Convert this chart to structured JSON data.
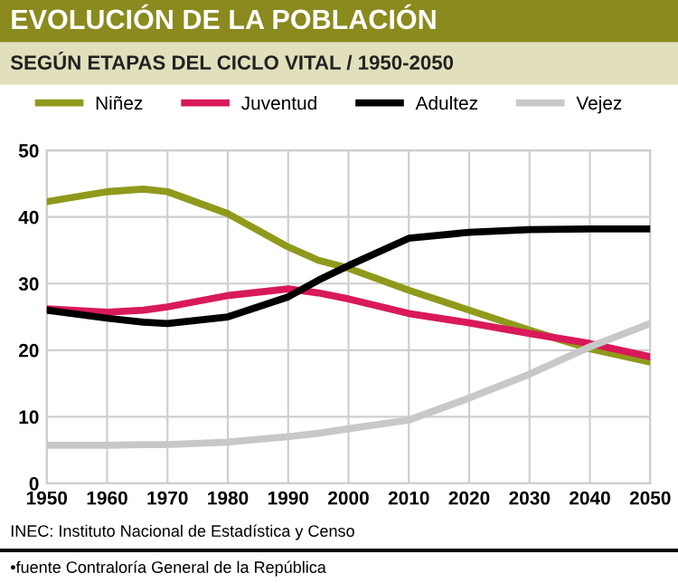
{
  "chart_data": {
    "type": "line",
    "title": "EVOLUCIÓN DE LA POBLACIÓN",
    "subtitle": "SEGÚN ETAPAS DEL CICLO VITAL / 1950-2050",
    "x": [
      1950,
      1960,
      1966,
      1970,
      1980,
      1990,
      1995,
      2000,
      2010,
      2020,
      2030,
      2040,
      2050
    ],
    "series": [
      {
        "name": "Niñez",
        "color": "#8f9a1c",
        "values": [
          42.3,
          43.8,
          44.2,
          43.8,
          40.5,
          35.5,
          33.5,
          32.3,
          29,
          26,
          23,
          20.2,
          18.2
        ]
      },
      {
        "name": "Juventud",
        "color": "#d9195a",
        "values": [
          26.2,
          25.7,
          26,
          26.5,
          28.2,
          29.2,
          28.6,
          27.7,
          25.5,
          24.1,
          22.5,
          21,
          19
        ]
      },
      {
        "name": "Adultez",
        "color": "#000000",
        "values": [
          26,
          24.8,
          24.2,
          24,
          25,
          28,
          30.5,
          32.7,
          36.8,
          37.7,
          38.1,
          38.2,
          38.2
        ]
      },
      {
        "name": "Vejez",
        "color": "#c8c8c8",
        "values": [
          5.7,
          5.7,
          5.8,
          5.8,
          6.2,
          7,
          7.5,
          8.2,
          9.5,
          12.8,
          16.4,
          20.5,
          24
        ]
      }
    ],
    "xlim": [
      1950,
      2050
    ],
    "xticks": [
      1950,
      1960,
      1970,
      1980,
      1990,
      2000,
      2010,
      2020,
      2030,
      2040,
      2050
    ],
    "ylim": [
      0,
      50
    ],
    "yticks": [
      0,
      10,
      20,
      30,
      40,
      50
    ],
    "grid": true,
    "legend": "top",
    "marker": "none",
    "line_style": "solid",
    "annotations": [
      "INEC: Instituto Nacional de Estadística y Censo",
      "•fuente Contraloría General de la República"
    ]
  }
}
